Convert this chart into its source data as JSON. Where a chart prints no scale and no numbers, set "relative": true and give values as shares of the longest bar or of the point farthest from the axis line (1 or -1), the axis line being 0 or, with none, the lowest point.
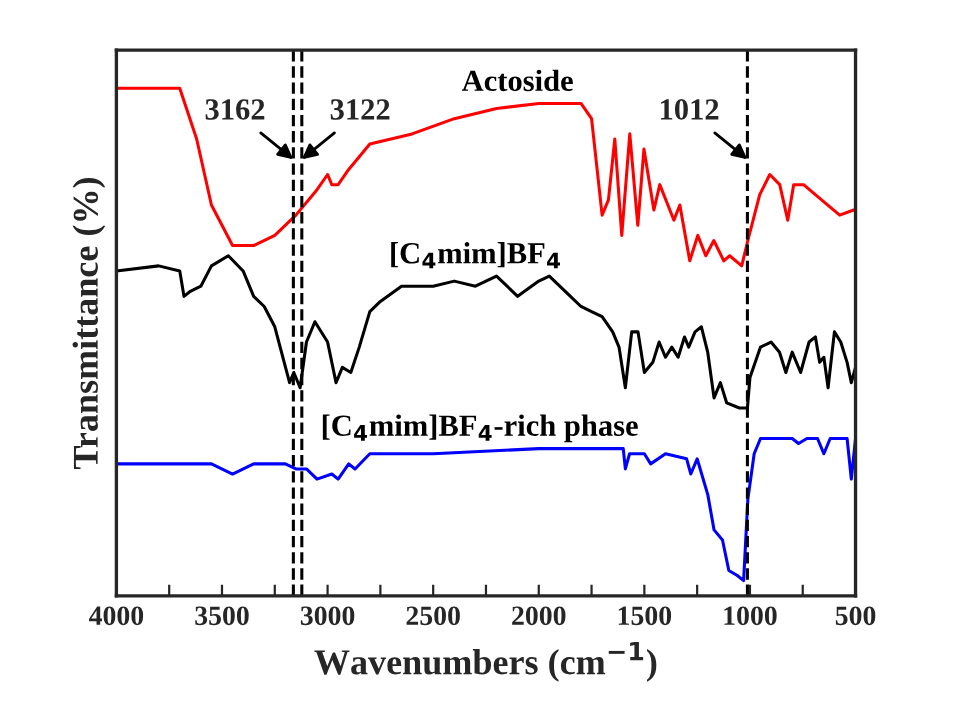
{
  "chart_data": {
    "type": "line",
    "relative": true,
    "xlabel": "Wavenumbers (cm$^{−1}$)",
    "ylabel": "Transmittance (%)",
    "legend": false,
    "grid": false,
    "line_style": "solid",
    "xlim": [
      4000,
      500
    ],
    "xticks": [
      4000,
      {
        "value": 3750,
        "label": null
      },
      3500,
      {
        "value": 3250,
        "label": null
      },
      3000,
      {
        "value": 2750,
        "label": null
      },
      2500,
      {
        "value": 2250,
        "label": null
      },
      2000,
      {
        "value": 1750,
        "label": null
      },
      1500,
      {
        "value": 1250,
        "label": null
      },
      1000,
      {
        "value": 750,
        "label": null
      },
      500
    ],
    "ref_lines": [
      {
        "axis": "x",
        "value": 3162,
        "label": "3162",
        "color": "#000000",
        "line_style": "dashed"
      },
      {
        "axis": "x",
        "value": 3122,
        "label": "3122",
        "color": "#000000",
        "line_style": "dashed"
      },
      {
        "axis": "x",
        "value": 1012,
        "label": "1012",
        "color": "#000000",
        "line_style": "dashed"
      }
    ],
    "series": [
      {
        "name": "Actoside",
        "color": "#ff0000",
        "x": [
          4000,
          3700,
          3620,
          3550,
          3450,
          3350,
          3250,
          3150,
          3050,
          3000,
          2980,
          2950,
          2900,
          2800,
          2600,
          2400,
          2200,
          2000,
          1800,
          1750,
          1700,
          1670,
          1640,
          1607,
          1569,
          1531,
          1502,
          1455,
          1427,
          1360,
          1332,
          1285,
          1247,
          1209,
          1171,
          1124,
          1096,
          1039,
          1010,
          954,
          906,
          859,
          821,
          793,
          746,
          689,
          575,
          509,
          500
        ],
        "values": [
          1.0,
          1.0,
          0.9,
          0.77,
          0.69,
          0.69,
          0.71,
          0.75,
          0.8,
          0.83,
          0.81,
          0.81,
          0.84,
          0.89,
          0.91,
          0.94,
          0.96,
          0.97,
          0.97,
          0.94,
          0.75,
          0.78,
          0.9,
          0.71,
          0.91,
          0.73,
          0.88,
          0.76,
          0.81,
          0.74,
          0.77,
          0.66,
          0.71,
          0.67,
          0.7,
          0.66,
          0.67,
          0.65,
          0.7,
          0.79,
          0.83,
          0.81,
          0.74,
          0.81,
          0.81,
          0.79,
          0.75,
          0.76,
          0.76
        ]
      },
      {
        "name": "[C$_{4}$mim]BF$_{4}$",
        "color": "#000000",
        "x": [
          4000,
          3800,
          3700,
          3680,
          3650,
          3600,
          3550,
          3470,
          3400,
          3350,
          3300,
          3250,
          3180,
          3160,
          3130,
          3100,
          3060,
          3000,
          2960,
          2930,
          2890,
          2850,
          2800,
          2750,
          2650,
          2500,
          2400,
          2300,
          2200,
          2100,
          2000,
          1950,
          1850,
          1800,
          1750,
          1700,
          1650,
          1620,
          1590,
          1560,
          1530,
          1500,
          1460,
          1430,
          1400,
          1370,
          1340,
          1310,
          1290,
          1260,
          1230,
          1200,
          1170,
          1140,
          1110,
          1050,
          1012,
          1000,
          950,
          900,
          860,
          830,
          800,
          760,
          720,
          690,
          670,
          650,
          630,
          600,
          570,
          540,
          520,
          500
        ],
        "values": [
          0.64,
          0.65,
          0.64,
          0.59,
          0.6,
          0.61,
          0.65,
          0.67,
          0.64,
          0.59,
          0.57,
          0.53,
          0.42,
          0.44,
          0.41,
          0.5,
          0.54,
          0.5,
          0.42,
          0.45,
          0.44,
          0.49,
          0.56,
          0.58,
          0.61,
          0.61,
          0.62,
          0.61,
          0.63,
          0.59,
          0.62,
          0.63,
          0.59,
          0.57,
          0.56,
          0.55,
          0.52,
          0.49,
          0.41,
          0.52,
          0.52,
          0.44,
          0.46,
          0.5,
          0.47,
          0.49,
          0.47,
          0.51,
          0.49,
          0.52,
          0.53,
          0.48,
          0.39,
          0.42,
          0.38,
          0.37,
          0.37,
          0.43,
          0.49,
          0.5,
          0.48,
          0.44,
          0.48,
          0.44,
          0.5,
          0.51,
          0.46,
          0.47,
          0.41,
          0.52,
          0.5,
          0.46,
          0.42,
          0.45
        ]
      },
      {
        "name": "[C$_{4}$mim]BF$_{4}$-rich phase",
        "color": "#0000ff",
        "x": [
          4000,
          3700,
          3550,
          3450,
          3350,
          3200,
          3150,
          3100,
          3050,
          2980,
          2950,
          2900,
          2870,
          2800,
          2500,
          2000,
          1600,
          1590,
          1570,
          1500,
          1470,
          1400,
          1300,
          1280,
          1250,
          1200,
          1170,
          1130,
          1100,
          1060,
          1030,
          1010,
          980,
          950,
          900,
          800,
          770,
          730,
          700,
          680,
          650,
          620,
          540,
          520,
          500
        ],
        "values": [
          0.26,
          0.26,
          0.26,
          0.24,
          0.26,
          0.26,
          0.25,
          0.25,
          0.23,
          0.24,
          0.23,
          0.26,
          0.25,
          0.28,
          0.28,
          0.29,
          0.29,
          0.25,
          0.28,
          0.28,
          0.26,
          0.28,
          0.27,
          0.24,
          0.27,
          0.2,
          0.13,
          0.11,
          0.05,
          0.04,
          0.03,
          0.19,
          0.28,
          0.31,
          0.31,
          0.31,
          0.3,
          0.31,
          0.31,
          0.31,
          0.28,
          0.31,
          0.31,
          0.23,
          0.31
        ]
      }
    ]
  }
}
